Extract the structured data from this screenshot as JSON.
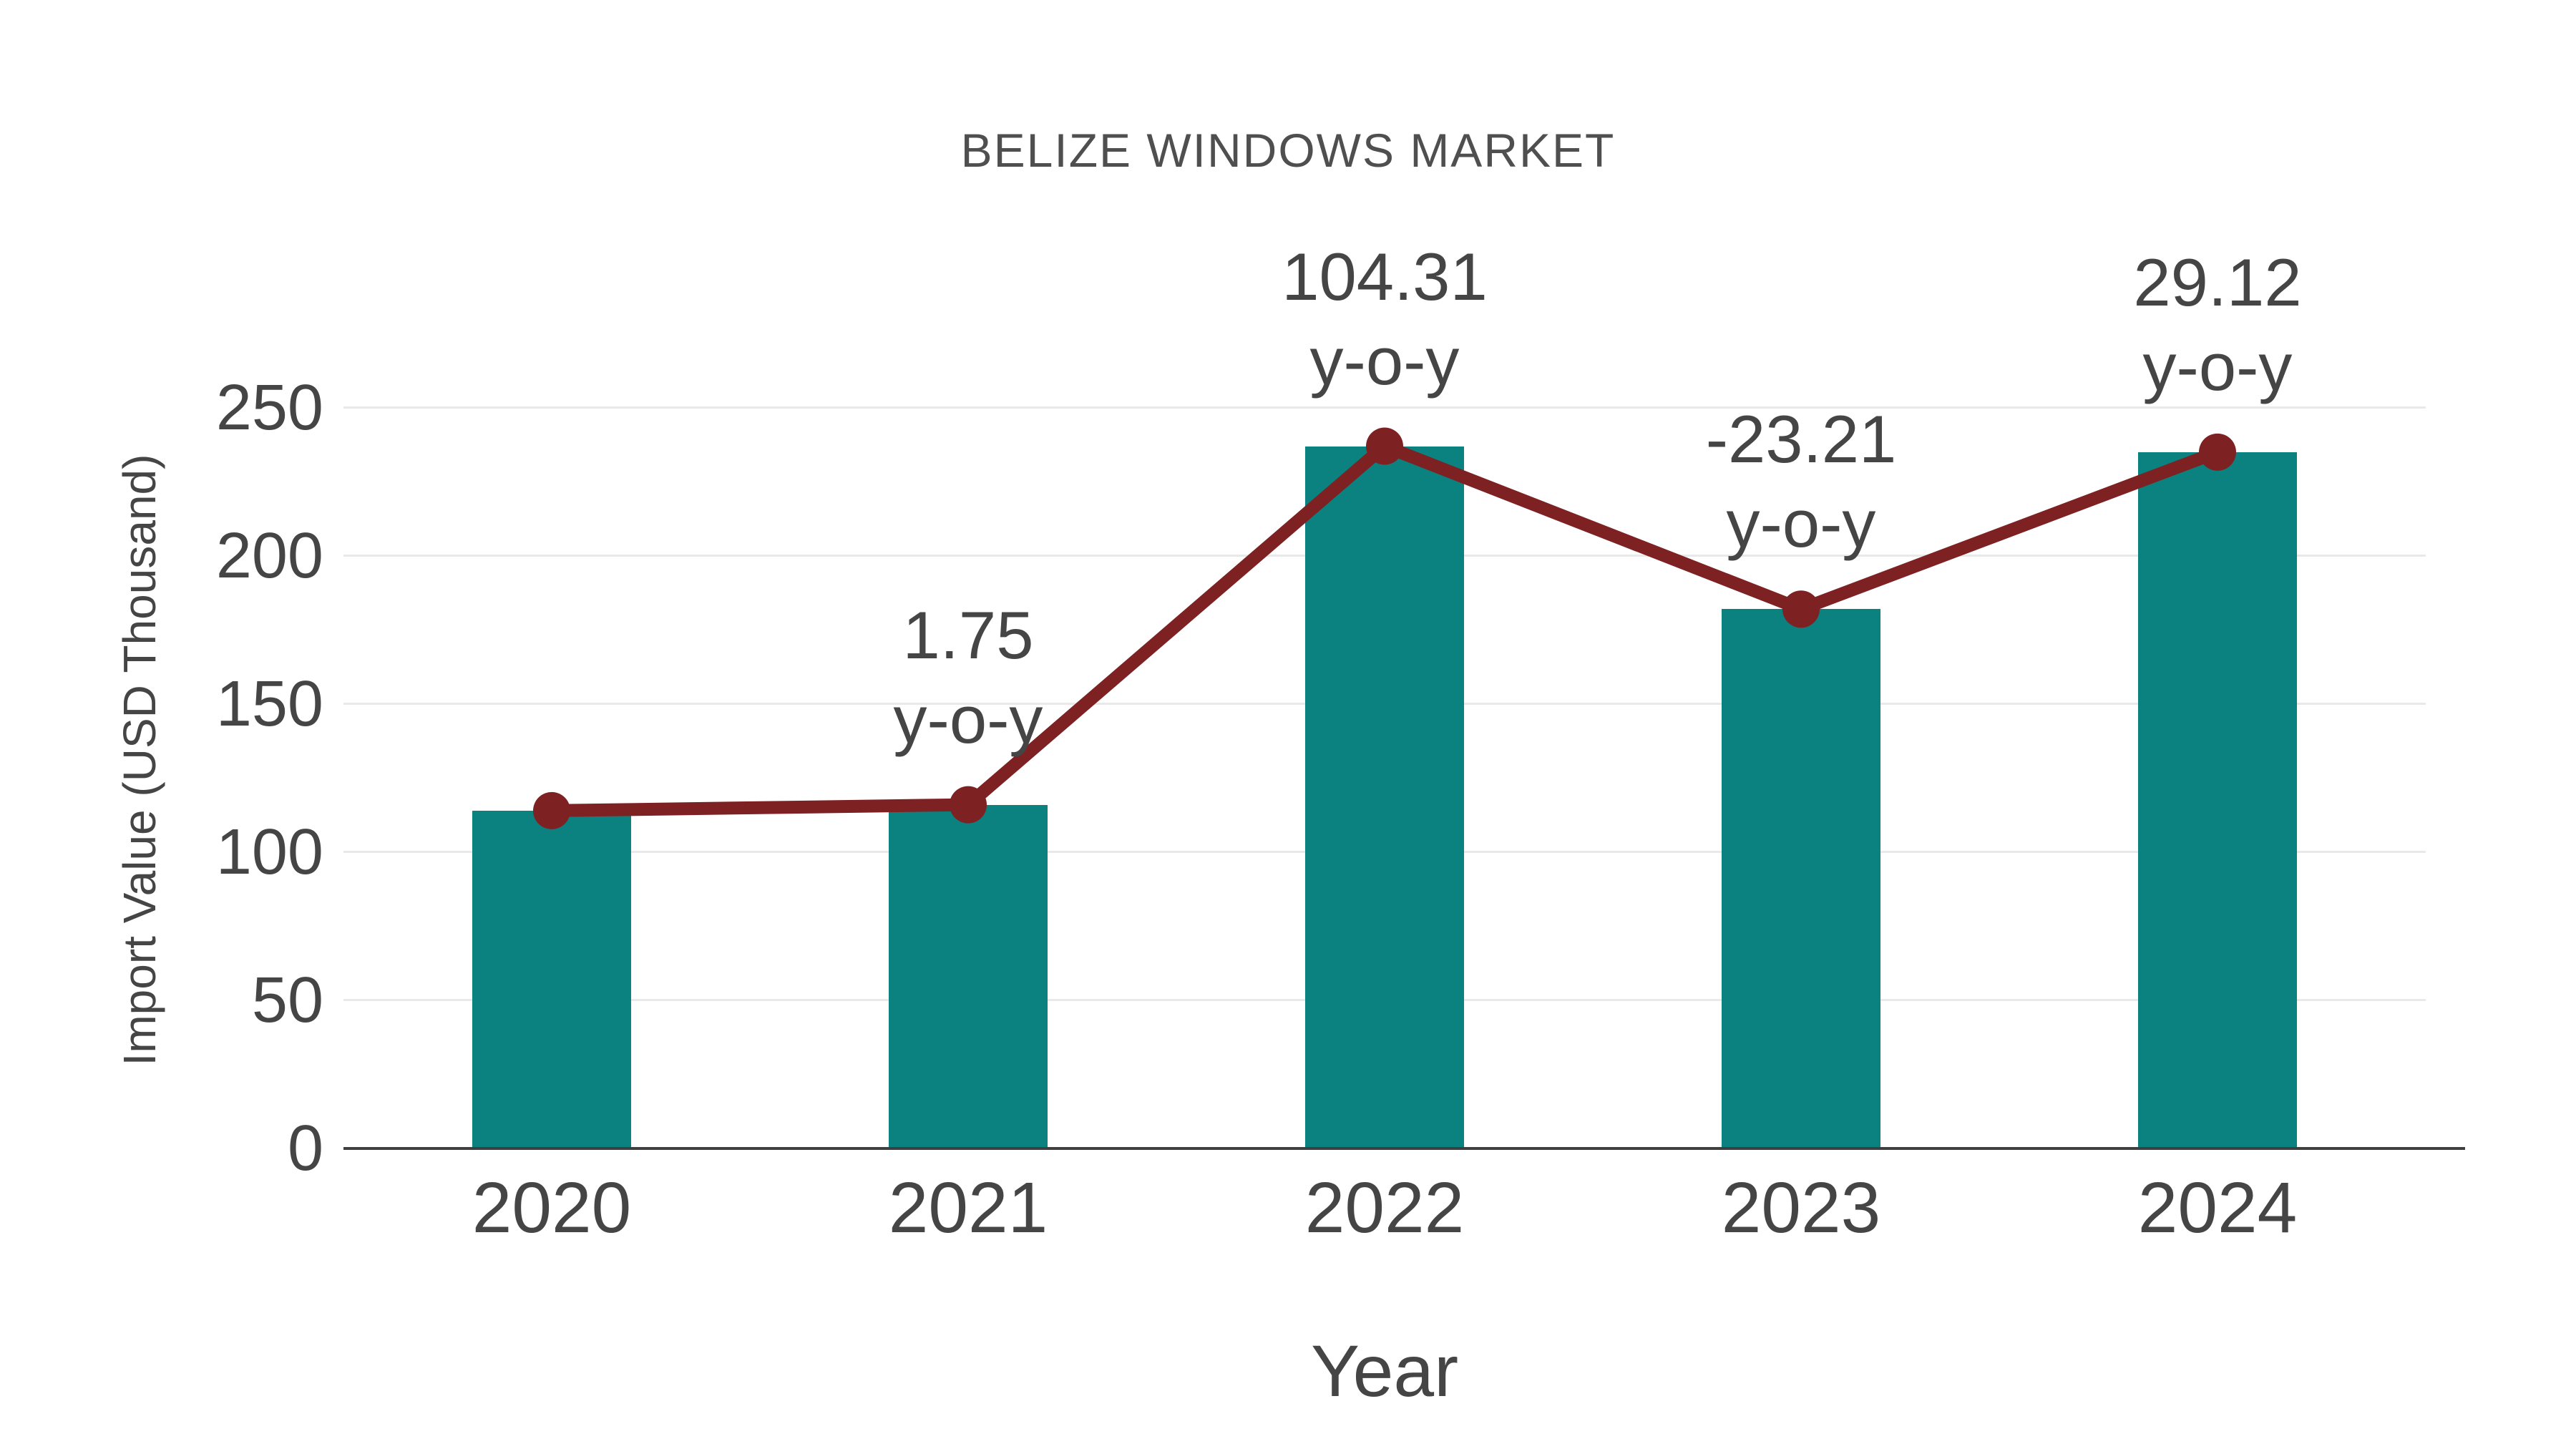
{
  "chart_data": {
    "type": "bar",
    "title": "BELIZE WINDOWS MARKET",
    "xlabel": "Year",
    "ylabel": "Import Value (USD Thousand)",
    "categories": [
      "2020",
      "2021",
      "2022",
      "2023",
      "2024"
    ],
    "values": [
      114,
      116,
      237,
      182,
      235
    ],
    "yticks": [
      0,
      50,
      100,
      150,
      200,
      250
    ],
    "ylim": [
      0,
      262
    ],
    "grid": true,
    "legend": "none",
    "bar_color": "#0b8280",
    "line_overlay": {
      "name": "import-value-trend",
      "color": "#7d2123",
      "values": [
        114,
        116,
        237,
        182,
        235
      ]
    },
    "annotations": [
      {
        "category": "2021",
        "value_text": "1.75",
        "label": "y-o-y"
      },
      {
        "category": "2022",
        "value_text": "104.31",
        "label": "y-o-y"
      },
      {
        "category": "2023",
        "value_text": "-23.21",
        "label": "y-o-y"
      },
      {
        "category": "2024",
        "value_text": "29.12",
        "label": "y-o-y"
      }
    ],
    "text_color": "#454545",
    "gridline_color": "#e9e9e9",
    "axisline_color": "#3f3f3f",
    "background": "#ffffff"
  }
}
